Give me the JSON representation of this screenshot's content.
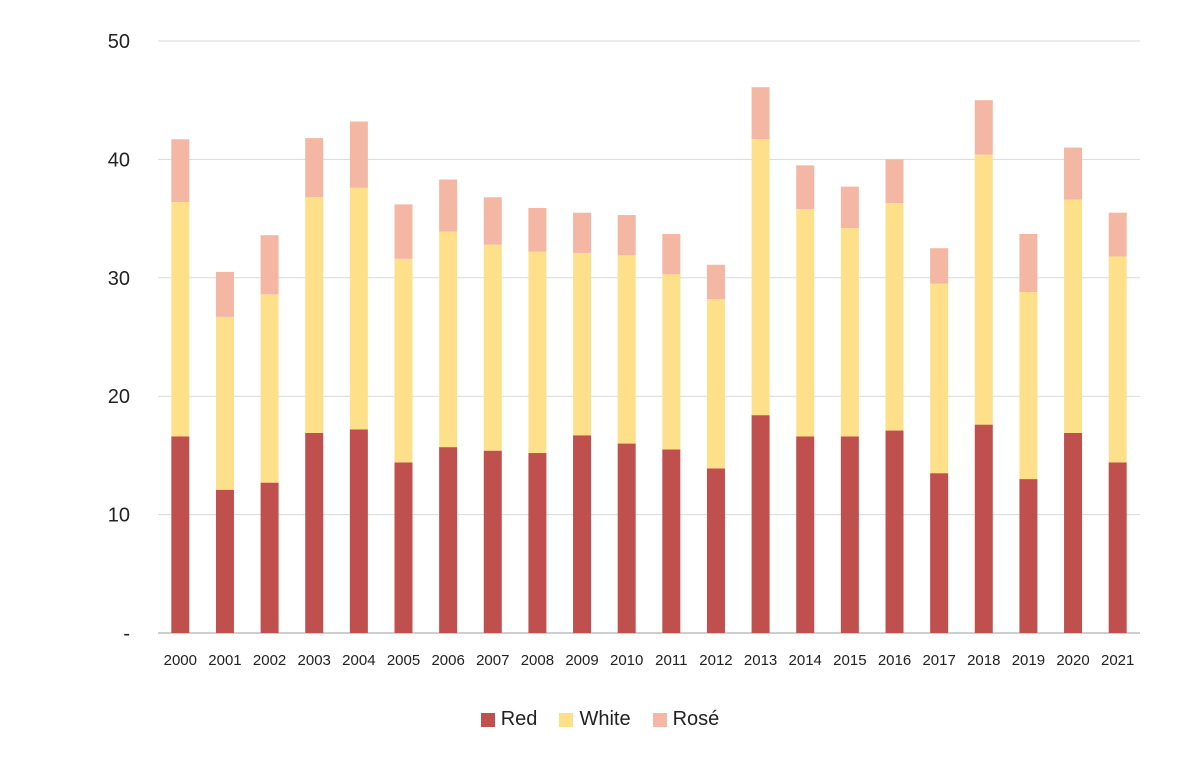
{
  "chart_data": {
    "type": "bar",
    "stacked": true,
    "title": "",
    "xlabel": "",
    "ylabel": "",
    "ylim": [
      0,
      50
    ],
    "y_ticks": [
      0,
      10,
      20,
      30,
      40,
      50
    ],
    "y_tick_labels": [
      "-",
      "10",
      "20",
      "30",
      "40",
      "50"
    ],
    "grid": true,
    "legend_position": "bottom",
    "categories": [
      "2000",
      "2001",
      "2002",
      "2003",
      "2004",
      "2005",
      "2006",
      "2007",
      "2008",
      "2009",
      "2010",
      "2011",
      "2012",
      "2013",
      "2014",
      "2015",
      "2016",
      "2017",
      "2018",
      "2019",
      "2020",
      "2021"
    ],
    "series": [
      {
        "name": "Red",
        "color": "#c0504d",
        "values": [
          16.6,
          12.1,
          12.7,
          16.9,
          17.2,
          14.4,
          15.7,
          15.4,
          15.2,
          16.7,
          16.0,
          15.5,
          13.9,
          18.4,
          16.6,
          16.6,
          17.1,
          13.5,
          17.6,
          13.0,
          16.9,
          14.4
        ]
      },
      {
        "name": "White",
        "color": "#ffe08a",
        "values": [
          19.8,
          14.6,
          15.9,
          19.9,
          20.4,
          17.2,
          18.2,
          17.4,
          17.0,
          15.4,
          15.9,
          14.8,
          14.3,
          23.3,
          19.2,
          17.6,
          19.2,
          16.0,
          22.8,
          15.8,
          19.7,
          17.4
        ]
      },
      {
        "name": "Rosé",
        "color": "#f4b7a4",
        "values": [
          5.3,
          3.8,
          5.0,
          5.0,
          5.6,
          4.6,
          4.4,
          4.0,
          3.7,
          3.4,
          3.4,
          3.4,
          2.9,
          4.4,
          3.7,
          3.5,
          3.7,
          3.0,
          4.6,
          4.9,
          4.4,
          3.7
        ]
      }
    ]
  }
}
